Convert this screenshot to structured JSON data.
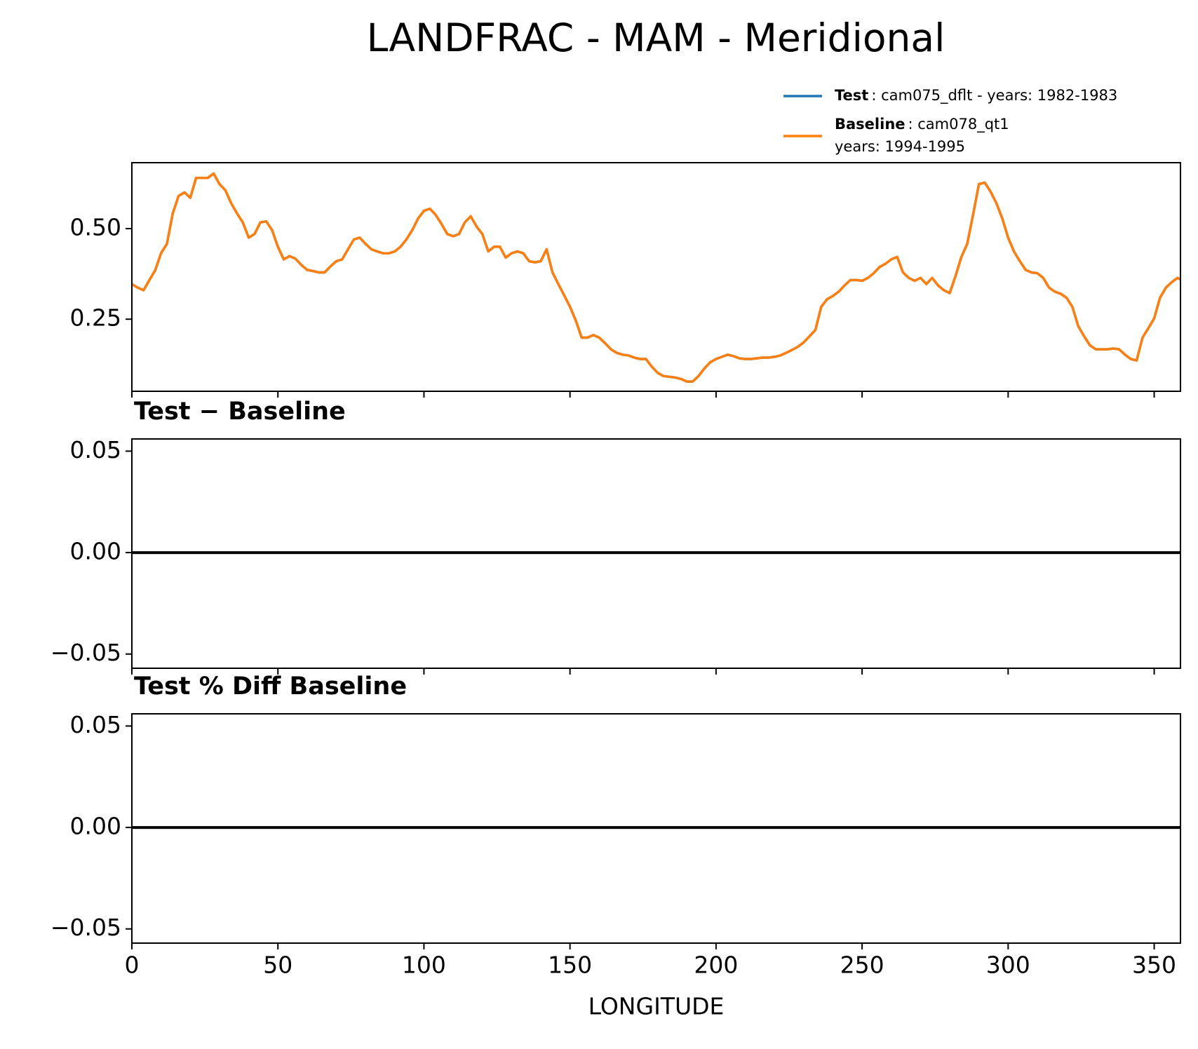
{
  "title": "LANDFRAC - MAM - Meridional",
  "chart_data": [
    {
      "type": "line",
      "x": [
        0,
        2,
        4,
        6,
        8,
        10,
        12,
        14,
        16,
        18,
        20,
        22,
        24,
        26,
        28,
        30,
        32,
        34,
        36,
        38,
        40,
        42,
        44,
        46,
        48,
        50,
        52,
        54,
        56,
        58,
        60,
        62,
        64,
        66,
        68,
        70,
        72,
        74,
        76,
        78,
        80,
        82,
        84,
        86,
        88,
        90,
        92,
        94,
        96,
        98,
        100,
        102,
        104,
        106,
        108,
        110,
        112,
        114,
        116,
        118,
        120,
        122,
        124,
        126,
        128,
        130,
        132,
        134,
        136,
        138,
        140,
        142,
        144,
        146,
        148,
        150,
        152,
        154,
        156,
        158,
        160,
        162,
        164,
        166,
        168,
        170,
        172,
        174,
        176,
        178,
        180,
        182,
        184,
        186,
        188,
        190,
        192,
        194,
        196,
        198,
        200,
        202,
        204,
        206,
        208,
        210,
        212,
        214,
        216,
        218,
        220,
        222,
        224,
        226,
        228,
        230,
        232,
        234,
        236,
        238,
        240,
        242,
        244,
        246,
        248,
        250,
        252,
        254,
        256,
        258,
        260,
        262,
        264,
        266,
        268,
        270,
        272,
        274,
        276,
        278,
        280,
        282,
        284,
        286,
        288,
        290,
        292,
        294,
        296,
        298,
        300,
        302,
        304,
        306,
        308,
        310,
        312,
        314,
        316,
        318,
        320,
        322,
        324,
        326,
        328,
        330,
        332,
        334,
        336,
        338,
        340,
        342,
        344,
        346,
        348,
        350,
        352,
        354,
        356,
        358,
        359
      ],
      "series": [
        {
          "name": "Test",
          "legend_text": [
            ": cam075_dflt - years: 1982-1983"
          ],
          "color": "#1f77b4",
          "values": [
            0.347,
            0.337,
            0.33,
            0.358,
            0.385,
            0.432,
            0.458,
            0.542,
            0.59,
            0.6,
            0.585,
            0.64,
            0.64,
            0.64,
            0.652,
            0.623,
            0.606,
            0.57,
            0.542,
            0.517,
            0.475,
            0.485,
            0.517,
            0.52,
            0.496,
            0.45,
            0.415,
            0.424,
            0.417,
            0.4,
            0.386,
            0.383,
            0.379,
            0.379,
            0.396,
            0.41,
            0.415,
            0.443,
            0.47,
            0.475,
            0.458,
            0.443,
            0.437,
            0.432,
            0.432,
            0.437,
            0.45,
            0.47,
            0.496,
            0.528,
            0.549,
            0.555,
            0.538,
            0.513,
            0.485,
            0.479,
            0.485,
            0.517,
            0.534,
            0.506,
            0.485,
            0.437,
            0.45,
            0.45,
            0.42,
            0.432,
            0.437,
            0.432,
            0.41,
            0.407,
            0.41,
            0.443,
            0.379,
            0.347,
            0.316,
            0.284,
            0.246,
            0.199,
            0.199,
            0.206,
            0.199,
            0.184,
            0.167,
            0.157,
            0.152,
            0.15,
            0.144,
            0.14,
            0.14,
            0.119,
            0.102,
            0.093,
            0.091,
            0.089,
            0.085,
            0.078,
            0.078,
            0.093,
            0.114,
            0.131,
            0.14,
            0.146,
            0.152,
            0.148,
            0.142,
            0.14,
            0.14,
            0.142,
            0.144,
            0.144,
            0.146,
            0.15,
            0.157,
            0.165,
            0.174,
            0.186,
            0.203,
            0.22,
            0.284,
            0.305,
            0.314,
            0.326,
            0.343,
            0.358,
            0.358,
            0.356,
            0.364,
            0.377,
            0.394,
            0.403,
            0.415,
            0.422,
            0.379,
            0.364,
            0.356,
            0.364,
            0.347,
            0.364,
            0.343,
            0.33,
            0.322,
            0.369,
            0.422,
            0.458,
            0.538,
            0.623,
            0.627,
            0.602,
            0.57,
            0.528,
            0.475,
            0.437,
            0.41,
            0.386,
            0.379,
            0.377,
            0.364,
            0.337,
            0.326,
            0.32,
            0.309,
            0.284,
            0.231,
            0.203,
            0.178,
            0.167,
            0.167,
            0.167,
            0.169,
            0.167,
            0.152,
            0.14,
            0.136,
            0.199,
            0.225,
            0.252,
            0.309,
            0.337,
            0.352,
            0.364,
            0.36
          ]
        },
        {
          "name": "Baseline",
          "legend_text": [
            ": cam078_qt1",
            "years: 1994-1995"
          ],
          "color": "#ff7f0e",
          "values": [
            0.347,
            0.337,
            0.33,
            0.358,
            0.385,
            0.432,
            0.458,
            0.542,
            0.59,
            0.6,
            0.585,
            0.64,
            0.64,
            0.64,
            0.652,
            0.623,
            0.606,
            0.57,
            0.542,
            0.517,
            0.475,
            0.485,
            0.517,
            0.52,
            0.496,
            0.45,
            0.415,
            0.424,
            0.417,
            0.4,
            0.386,
            0.383,
            0.379,
            0.379,
            0.396,
            0.41,
            0.415,
            0.443,
            0.47,
            0.475,
            0.458,
            0.443,
            0.437,
            0.432,
            0.432,
            0.437,
            0.45,
            0.47,
            0.496,
            0.528,
            0.549,
            0.555,
            0.538,
            0.513,
            0.485,
            0.479,
            0.485,
            0.517,
            0.534,
            0.506,
            0.485,
            0.437,
            0.45,
            0.45,
            0.42,
            0.432,
            0.437,
            0.432,
            0.41,
            0.407,
            0.41,
            0.443,
            0.379,
            0.347,
            0.316,
            0.284,
            0.246,
            0.199,
            0.199,
            0.206,
            0.199,
            0.184,
            0.167,
            0.157,
            0.152,
            0.15,
            0.144,
            0.14,
            0.14,
            0.119,
            0.102,
            0.093,
            0.091,
            0.089,
            0.085,
            0.078,
            0.078,
            0.093,
            0.114,
            0.131,
            0.14,
            0.146,
            0.152,
            0.148,
            0.142,
            0.14,
            0.14,
            0.142,
            0.144,
            0.144,
            0.146,
            0.15,
            0.157,
            0.165,
            0.174,
            0.186,
            0.203,
            0.22,
            0.284,
            0.305,
            0.314,
            0.326,
            0.343,
            0.358,
            0.358,
            0.356,
            0.364,
            0.377,
            0.394,
            0.403,
            0.415,
            0.422,
            0.379,
            0.364,
            0.356,
            0.364,
            0.347,
            0.364,
            0.343,
            0.33,
            0.322,
            0.369,
            0.422,
            0.458,
            0.538,
            0.623,
            0.627,
            0.602,
            0.57,
            0.528,
            0.475,
            0.437,
            0.41,
            0.386,
            0.379,
            0.377,
            0.364,
            0.337,
            0.326,
            0.32,
            0.309,
            0.284,
            0.231,
            0.203,
            0.178,
            0.167,
            0.167,
            0.167,
            0.169,
            0.167,
            0.152,
            0.14,
            0.136,
            0.199,
            0.225,
            0.252,
            0.309,
            0.337,
            0.352,
            0.364,
            0.36
          ]
        }
      ],
      "xlim": [
        0,
        359
      ],
      "xticks": [
        0,
        50,
        100,
        150,
        200,
        250,
        300,
        350
      ],
      "xticklabels": false,
      "ylim": [
        0.051,
        0.682
      ],
      "yticks": [
        0.25,
        {
          "value": 0.5,
          "label": "0.50"
        }
      ]
    },
    {
      "type": "line",
      "title": "Test − Baseline",
      "x": [
        0,
        359
      ],
      "series": [
        {
          "color": "#000000",
          "values": [
            0,
            0
          ]
        }
      ],
      "xlim": [
        0,
        359
      ],
      "xticks": [
        0,
        50,
        100,
        150,
        200,
        250,
        300,
        350
      ],
      "xticklabels": false,
      "ylim": [
        -0.057,
        0.056
      ],
      "yticks": [
        {
          "value": -0.05,
          "label": "−0.05"
        },
        {
          "value": 0,
          "label": "0.00"
        },
        0.05
      ]
    },
    {
      "type": "line",
      "title": "Test % Diff Baseline",
      "xlabel": "LONGITUDE",
      "x": [
        0,
        359
      ],
      "series": [
        {
          "color": "#000000",
          "values": [
            0,
            0
          ]
        }
      ],
      "xlim": [
        0,
        359
      ],
      "xticks": [
        0,
        50,
        100,
        150,
        200,
        250,
        300,
        350
      ],
      "xticklabels": true,
      "ylim": [
        -0.057,
        0.056
      ],
      "yticks": [
        {
          "value": -0.05,
          "label": "−0.05"
        },
        {
          "value": 0,
          "label": "0.00"
        },
        0.05
      ]
    }
  ]
}
